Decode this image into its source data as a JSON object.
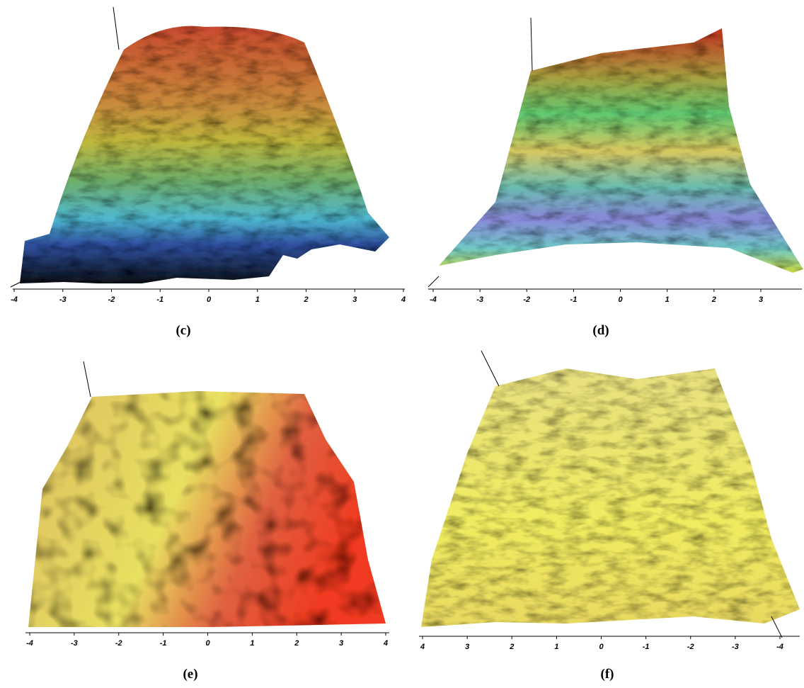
{
  "panels": [
    {
      "caption": "(c)",
      "ticks": [
        -4,
        -3,
        -2,
        -1,
        0,
        1,
        2,
        3,
        4
      ]
    },
    {
      "caption": "(d)",
      "ticks": [
        -4,
        -3,
        -2,
        -1,
        0,
        1,
        2,
        3
      ]
    },
    {
      "caption": "(e)",
      "ticks": [
        -4,
        -3,
        -2,
        -1,
        0,
        1,
        2,
        3,
        4
      ]
    },
    {
      "caption": "(f)",
      "ticks": [
        4,
        3,
        2,
        1,
        0,
        -1,
        -2,
        -3,
        -4
      ]
    }
  ]
}
